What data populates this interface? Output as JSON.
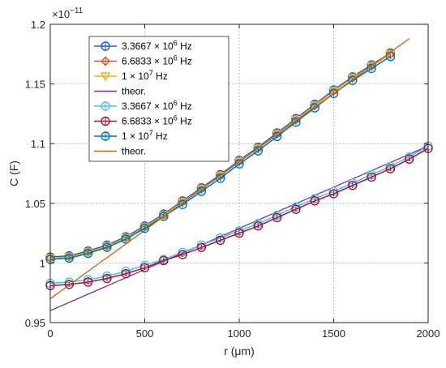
{
  "chart_data": {
    "type": "line",
    "xlabel": "r (μm)",
    "ylabel": "C (F)",
    "exponent_label": "×10",
    "exponent_power": "−11",
    "xlim": [
      0,
      2000
    ],
    "ylim": [
      0.95,
      1.2
    ],
    "xticks": [
      0,
      500,
      1000,
      1500,
      2000
    ],
    "yticks": [
      0.95,
      1,
      1.05,
      1.1,
      1.15,
      1.2
    ],
    "xtick_labels": [
      "0",
      "500",
      "1000",
      "1500",
      "2000"
    ],
    "ytick_labels": [
      "0.95",
      "1",
      "1.05",
      "1.1",
      "1.15",
      "1.2"
    ],
    "grid": true,
    "legend_position": "top-left",
    "series": [
      {
        "legend_base": "3.3667 × 10",
        "legend_sup": "6",
        "legend_unit": " Hz",
        "group": "upper",
        "color": "#1f5fb4",
        "marker": "circle",
        "x": [
          0,
          100,
          200,
          300,
          400,
          500,
          600,
          700,
          800,
          900,
          1000,
          1100,
          1200,
          1300,
          1400,
          1500,
          1600,
          1700,
          1800
        ],
        "y": [
          1.005,
          1.006,
          1.01,
          1.015,
          1.022,
          1.031,
          1.041,
          1.052,
          1.063,
          1.074,
          1.086,
          1.097,
          1.109,
          1.121,
          1.133,
          1.145,
          1.156,
          1.166,
          1.176
        ]
      },
      {
        "legend_base": "6.6833 × 10",
        "legend_sup": "6",
        "legend_unit": " Hz",
        "group": "upper",
        "color": "#d95319",
        "marker": "diamond",
        "x": [
          0,
          100,
          200,
          300,
          400,
          500,
          600,
          700,
          800,
          900,
          1000,
          1100,
          1200,
          1300,
          1400,
          1500,
          1600,
          1700,
          1800
        ],
        "y": [
          1.004,
          1.005,
          1.009,
          1.014,
          1.021,
          1.03,
          1.04,
          1.051,
          1.062,
          1.073,
          1.085,
          1.096,
          1.108,
          1.12,
          1.132,
          1.144,
          1.155,
          1.165,
          1.175
        ]
      },
      {
        "legend_base": "1 × 10",
        "legend_sup": "7",
        "legend_unit": " Hz",
        "group": "upper",
        "color": "#edb120",
        "marker": "triangle",
        "x": [
          0,
          100,
          200,
          300,
          400,
          500,
          600,
          700,
          800,
          900,
          1000,
          1100,
          1200,
          1300,
          1400,
          1500,
          1600,
          1700,
          1800
        ],
        "y": [
          1.004,
          1.005,
          1.009,
          1.014,
          1.021,
          1.03,
          1.04,
          1.051,
          1.062,
          1.073,
          1.085,
          1.096,
          1.108,
          1.12,
          1.132,
          1.144,
          1.155,
          1.165,
          1.175
        ]
      },
      {
        "legend_base": "theor.",
        "legend_sup": "",
        "legend_unit": "",
        "group": "upper-theory",
        "color": "#7e2f8e",
        "marker": "none",
        "x": [
          0,
          2000
        ],
        "y": [
          0.96,
          1.098
        ]
      },
      {
        "legend_base": "3.3667 × 10",
        "legend_sup": "6",
        "legend_unit": " Hz",
        "group": "lower",
        "color": "#4dbeee",
        "marker": "circle",
        "x": [
          0,
          100,
          200,
          300,
          400,
          500,
          600,
          700,
          800,
          900,
          1000,
          1100,
          1200,
          1300,
          1400,
          1500,
          1600,
          1700,
          1800,
          1900,
          2000
        ],
        "y": [
          0.983,
          0.984,
          0.986,
          0.989,
          0.993,
          0.998,
          1.003,
          1.009,
          1.015,
          1.021,
          1.027,
          1.033,
          1.04,
          1.047,
          1.054,
          1.06,
          1.067,
          1.074,
          1.081,
          1.089,
          1.098
        ]
      },
      {
        "legend_base": "6.6833 × 10",
        "legend_sup": "6",
        "legend_unit": " Hz",
        "group": "lower",
        "color": "#a2142f",
        "marker": "circle",
        "x": [
          0,
          100,
          200,
          300,
          400,
          500,
          600,
          700,
          800,
          900,
          1000,
          1100,
          1200,
          1300,
          1400,
          1500,
          1600,
          1700,
          1800,
          1900,
          2000
        ],
        "y": [
          0.981,
          0.982,
          0.984,
          0.987,
          0.991,
          0.996,
          1.002,
          1.007,
          1.013,
          1.019,
          1.025,
          1.031,
          1.038,
          1.045,
          1.052,
          1.058,
          1.065,
          1.072,
          1.079,
          1.087,
          1.096
        ]
      },
      {
        "legend_base": "1 × 10",
        "legend_sup": "7",
        "legend_unit": " Hz",
        "group": "lower",
        "color": "#0072bd",
        "marker": "circle",
        "x": [
          0,
          100,
          200,
          300,
          400,
          500,
          600,
          700,
          800,
          900,
          1000,
          1100,
          1200,
          1300,
          1400,
          1500,
          1600,
          1700,
          1800
        ],
        "y": [
          1.003,
          1.004,
          1.008,
          1.013,
          1.02,
          1.029,
          1.039,
          1.049,
          1.06,
          1.071,
          1.083,
          1.094,
          1.106,
          1.118,
          1.13,
          1.142,
          1.153,
          1.163,
          1.173
        ]
      },
      {
        "legend_base": "theor.",
        "legend_sup": "",
        "legend_unit": "",
        "group": "lower-theory",
        "color": "#c0651a",
        "marker": "none",
        "x": [
          0,
          1900
        ],
        "y": [
          0.97,
          1.188
        ]
      }
    ]
  }
}
